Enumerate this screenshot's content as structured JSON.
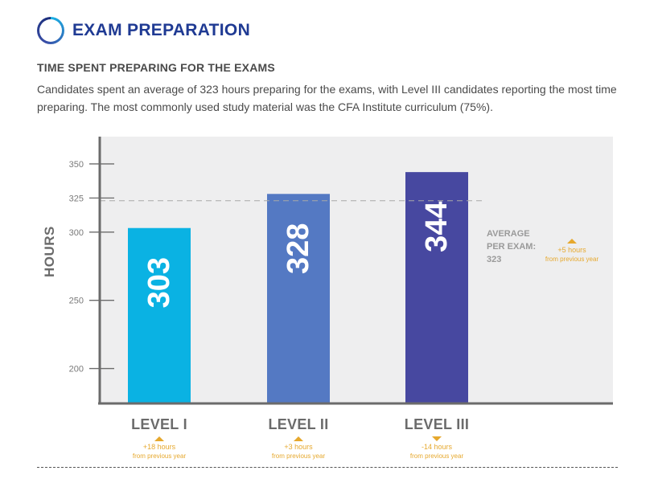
{
  "header": {
    "title": "EXAM PREPARATION"
  },
  "section": {
    "subtitle": "TIME SPENT PREPARING FOR THE EXAMS",
    "description": "Candidates spent an average of 323 hours preparing for the exams, with Level III candidates reporting the most time preparing. The most commonly used study material was the CFA Institute curriculum (75%)."
  },
  "chart_data": {
    "type": "bar",
    "title": "TIME SPENT PREPARING FOR THE EXAMS",
    "ylabel": "HOURS",
    "xlabel": "",
    "ylim": [
      175,
      370
    ],
    "yticks": [
      200,
      250,
      300,
      325,
      350
    ],
    "categories": [
      "LEVEL I",
      "LEVEL II",
      "LEVEL III"
    ],
    "values": [
      303,
      328,
      344
    ],
    "value_labels": [
      "303",
      "328",
      "344"
    ],
    "bar_colors": [
      "#0ab2e3",
      "#5479c3",
      "#4748a0"
    ],
    "changes": [
      {
        "direction": "up",
        "text": "+18 hours",
        "sub": "from previous year"
      },
      {
        "direction": "up",
        "text": "+3 hours",
        "sub": "from previous year"
      },
      {
        "direction": "down",
        "text": "-14 hours",
        "sub": "from previous year"
      }
    ],
    "average": {
      "value": 323,
      "label_line1": "AVERAGE",
      "label_line2": "PER EXAM:",
      "label_line3": "323",
      "change_direction": "up",
      "change_text": "+5 hours",
      "change_sub": "from previous year"
    },
    "colors": {
      "accent": "#e6a82d",
      "plot_bg": "#eeeeef",
      "axis": "#6b6b6b"
    }
  }
}
